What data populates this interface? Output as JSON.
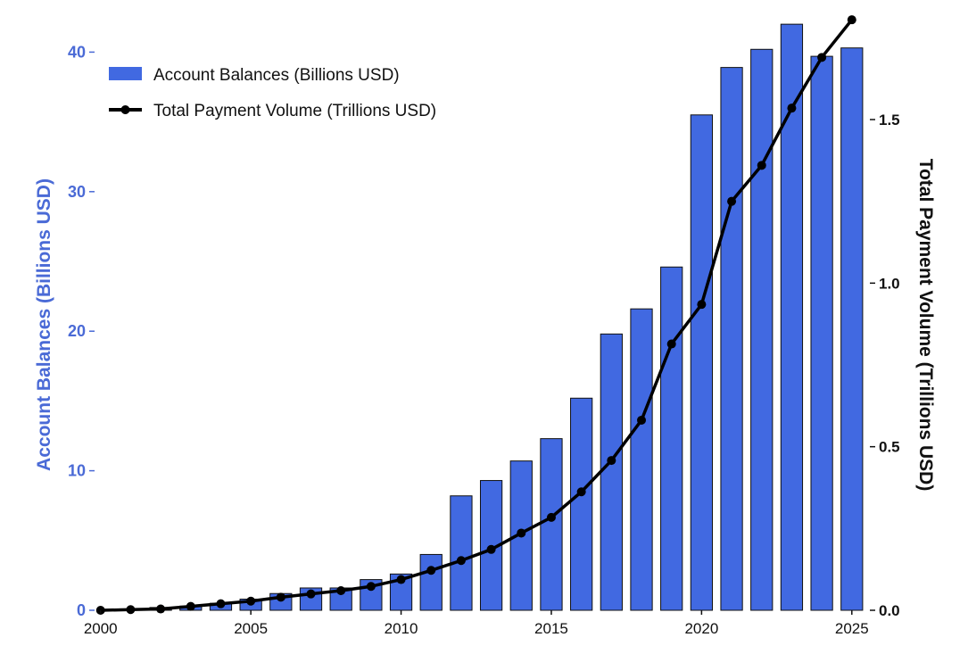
{
  "chart_data": {
    "type": "bar+line",
    "x": [
      2000,
      2001,
      2002,
      2003,
      2004,
      2005,
      2006,
      2007,
      2008,
      2009,
      2010,
      2011,
      2012,
      2013,
      2014,
      2015,
      2016,
      2017,
      2018,
      2019,
      2020,
      2021,
      2022,
      2023,
      2024,
      2025
    ],
    "x_ticks": [
      "2000",
      "2005",
      "2010",
      "2015",
      "2020",
      "2025"
    ],
    "x_tick_values": [
      2000,
      2005,
      2010,
      2015,
      2020,
      2025
    ],
    "xlim": [
      1999.8,
      2025.6
    ],
    "series": [
      {
        "name": "Account Balances (Billions USD)",
        "type": "bar",
        "axis": "left",
        "values": [
          0.0,
          0.1,
          0.2,
          0.3,
          0.5,
          0.8,
          1.2,
          1.6,
          1.6,
          2.2,
          2.6,
          4.0,
          8.2,
          9.3,
          10.7,
          12.3,
          15.2,
          19.8,
          21.6,
          24.6,
          35.5,
          38.9,
          40.2,
          42.0,
          39.7,
          40.3
        ]
      },
      {
        "name": "Total Payment Volume (Trillions USD)",
        "type": "line",
        "axis": "right",
        "values": [
          0.0,
          0.002,
          0.004,
          0.012,
          0.02,
          0.028,
          0.04,
          0.05,
          0.06,
          0.073,
          0.094,
          0.122,
          0.152,
          0.186,
          0.236,
          0.284,
          0.362,
          0.458,
          0.581,
          0.814,
          0.935,
          1.25,
          1.36,
          1.535,
          1.69,
          1.805
        ]
      }
    ],
    "y_left": {
      "label": "Account Balances (Billions USD)",
      "ylim": [
        0,
        42.2
      ],
      "ticks": [
        "0",
        "10",
        "20",
        "30",
        "40"
      ],
      "tick_values": [
        0,
        10,
        20,
        30,
        40
      ]
    },
    "y_right": {
      "label": "Total Payment Volume (Trillions USD)",
      "ylim": [
        0,
        1.8
      ],
      "ticks": [
        "0.0",
        "0.5",
        "1.0",
        "1.5"
      ],
      "tick_values": [
        0,
        0.5,
        1.0,
        1.5
      ]
    },
    "legend": {
      "placement": "top-left",
      "entries": [
        "Account Balances (Billions USD)",
        "Total Payment Volume (Trillions USD)"
      ]
    },
    "colors": {
      "bar_fill": "#4169e1",
      "bar_edge": "#111111",
      "line": "#000000",
      "left_axis_text": "#4a6ad6"
    },
    "grid": false
  }
}
